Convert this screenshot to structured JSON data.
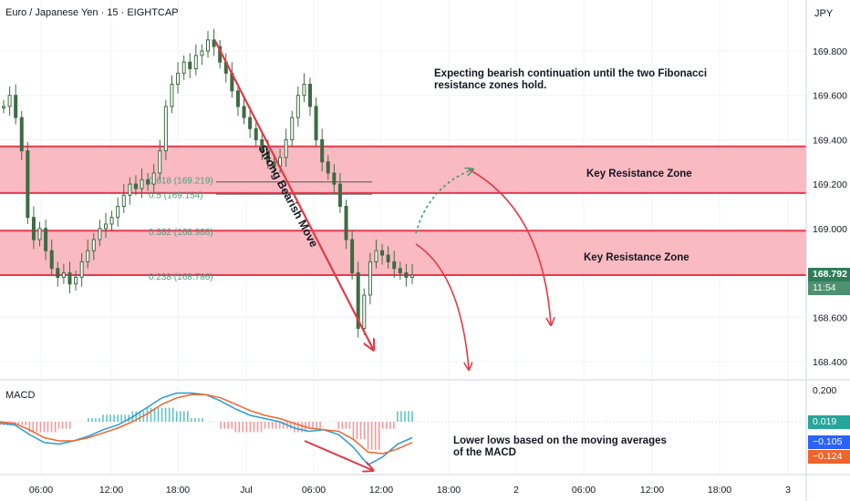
{
  "header": {
    "title": "Euro / Japanese Yen · 15 · EIGHTCAP",
    "currency": "JPY"
  },
  "macd_label": "MACD",
  "price_tags": {
    "last_price": "168.792",
    "countdown": "11:54",
    "macd_hist": "0.019",
    "macd_line": "−0.105",
    "macd_signal": "−0.124"
  },
  "annotations": {
    "outlook": "Expecting bearish continuation until the two Fibonacci resistance zones hold.",
    "zone_upper": "Key Resistance Zone",
    "zone_lower": "Key Resistance Zone",
    "bearish_move": "Strong Bearish Move",
    "macd_note": "Lower lows based on the moving averages of the MACD"
  },
  "colors": {
    "zone_fill": "#f9b2ba",
    "zone_border": "#e53950",
    "candle": "#3f6b45",
    "arrow": "#e23a45",
    "dotted_arrow": "#3a9b7a",
    "fib_text": "#4a9e82",
    "macd_line": "#2a9bd6",
    "signal_line": "#f0652a",
    "hist_up": "#5ec4c8",
    "hist_down": "#ef9a9a",
    "macd_tag_hist": "#26a69a",
    "macd_tag_line": "#2962ff",
    "macd_tag_signal": "#f0652a",
    "price_tag": "#2e7d5a"
  },
  "chart_data": {
    "type": "candlestick",
    "symbol": "Euro / Japanese Yen",
    "timeframe": "15",
    "y_axis": {
      "ticks": [
        "169.800",
        "169.600",
        "169.400",
        "169.200",
        "169.000",
        "168.800",
        "168.600",
        "168.400"
      ],
      "range": [
        168.28,
        169.98
      ]
    },
    "x_axis": {
      "ticks": [
        "06:00",
        "12:00",
        "18:00",
        "Jul",
        "06:00",
        "12:00",
        "18:00",
        "2",
        "06:00",
        "12:00",
        "18:00",
        "3"
      ]
    },
    "fibonacci_levels": [
      {
        "ratio": "0.618",
        "price": 169.219,
        "label": "0.618 (169.219)"
      },
      {
        "ratio": "0.5",
        "price": 169.154,
        "label": "0.5 (169.154)"
      },
      {
        "ratio": "0.382",
        "price": 168.988,
        "label": "0.382 (168.988)"
      },
      {
        "ratio": "0.238",
        "price": 168.786,
        "label": "0.238 (168.786)"
      }
    ],
    "resistance_zones": [
      {
        "name": "Key Resistance Zone",
        "from": 169.16,
        "to": 169.37
      },
      {
        "name": "Key Resistance Zone",
        "from": 168.79,
        "to": 168.99
      }
    ],
    "price_path": [
      169.55,
      169.6,
      169.5,
      169.35,
      169.05,
      168.95,
      169.0,
      168.9,
      168.82,
      168.78,
      168.8,
      168.75,
      168.78,
      168.85,
      168.9,
      168.95,
      169.0,
      169.02,
      169.05,
      169.1,
      169.15,
      169.2,
      169.18,
      169.22,
      169.2,
      169.25,
      169.35,
      169.55,
      169.65,
      169.7,
      169.75,
      169.72,
      169.78,
      169.8,
      169.85,
      169.82,
      169.75,
      169.7,
      169.62,
      169.55,
      169.5,
      169.45,
      169.4,
      169.35,
      169.3,
      169.28,
      169.32,
      169.4,
      169.5,
      169.6,
      169.65,
      169.55,
      169.4,
      169.3,
      169.25,
      169.2,
      169.1,
      168.95,
      168.8,
      168.55,
      168.7,
      168.85,
      168.9,
      168.88,
      168.85,
      168.82,
      168.8,
      168.78,
      168.79
    ],
    "macd": {
      "levels": [
        "0.200",
        "0.019",
        "−0.105",
        "−0.124"
      ],
      "range": [
        -0.32,
        0.26
      ],
      "macd_line": [
        -0.01,
        -0.02,
        -0.08,
        -0.13,
        -0.14,
        -0.12,
        -0.09,
        -0.05,
        -0.02,
        0.03,
        0.09,
        0.15,
        0.18,
        0.18,
        0.17,
        0.13,
        0.08,
        0.04,
        0.02,
        0.0,
        -0.04,
        -0.06,
        -0.05,
        -0.08,
        -0.16,
        -0.27,
        -0.22,
        -0.14,
        -0.1
      ],
      "signal_line": [
        0.0,
        -0.01,
        -0.05,
        -0.1,
        -0.12,
        -0.12,
        -0.1,
        -0.07,
        -0.04,
        0.0,
        0.05,
        0.11,
        0.15,
        0.17,
        0.17,
        0.15,
        0.11,
        0.07,
        0.04,
        0.02,
        -0.01,
        -0.04,
        -0.05,
        -0.06,
        -0.11,
        -0.19,
        -0.2,
        -0.17,
        -0.13
      ]
    }
  }
}
